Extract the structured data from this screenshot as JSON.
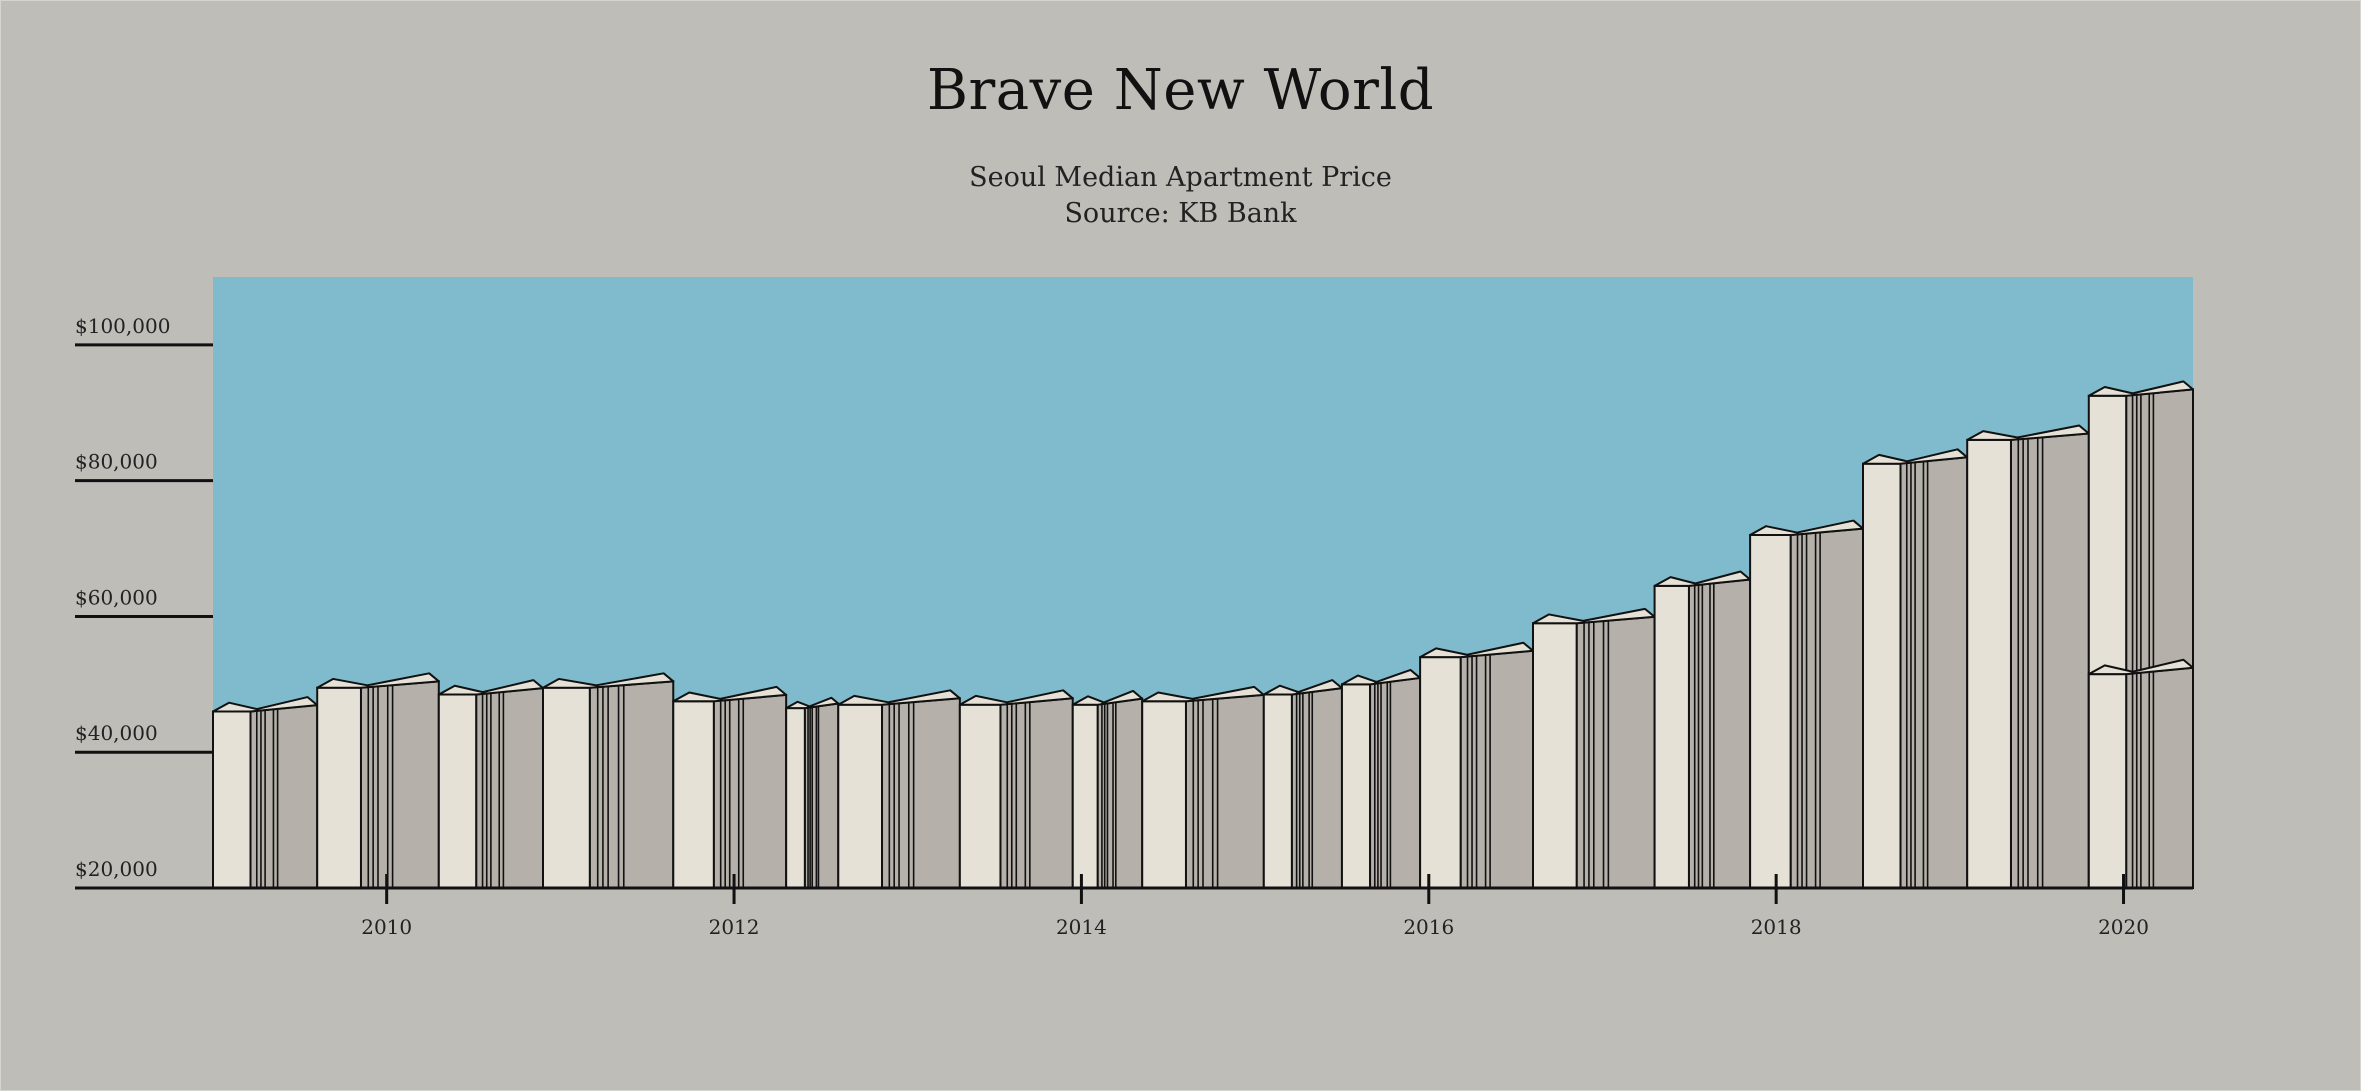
{
  "header": {
    "title": "Brave New World",
    "subtitle_line1": "Seoul Median Apartment Price",
    "subtitle_line2": "Source: KB Bank"
  },
  "colors": {
    "background": "#bfbdb8",
    "plot_background": "#7fbbcc",
    "building_front": "#e5e1d6",
    "building_side": "#b5b1aa",
    "outline": "#111111"
  },
  "chart_data": {
    "type": "bar",
    "style": "3d-buildings",
    "title": "Brave New World",
    "subtitle": "Seoul Median Apartment Price\nSource: KB Bank",
    "xlabel": "",
    "ylabel": "",
    "xlim": [
      2009.0,
      2020.4
    ],
    "ylim": [
      20000,
      110000
    ],
    "x_ticks": [
      2010,
      2012,
      2014,
      2016,
      2018,
      2020
    ],
    "x_tick_labels": [
      "2010",
      "2012",
      "2014",
      "2016",
      "2018",
      "2020"
    ],
    "y_ticks": [
      20000,
      40000,
      60000,
      80000,
      100000
    ],
    "y_tick_labels": [
      "$20,000",
      "$40,000",
      "$60,000",
      "$80,000",
      "$100,000"
    ],
    "grid": false,
    "legend": "none",
    "bars": [
      {
        "start": 2009.0,
        "end": 2009.6,
        "value": 46000
      },
      {
        "start": 2009.6,
        "end": 2010.3,
        "value": 49500
      },
      {
        "start": 2010.3,
        "end": 2010.9,
        "value": 48500
      },
      {
        "start": 2010.9,
        "end": 2011.65,
        "value": 49500
      },
      {
        "start": 2011.65,
        "end": 2012.3,
        "value": 47500
      },
      {
        "start": 2012.3,
        "end": 2012.6,
        "value": 46500
      },
      {
        "start": 2012.6,
        "end": 2013.3,
        "value": 47000
      },
      {
        "start": 2013.3,
        "end": 2013.95,
        "value": 47000
      },
      {
        "start": 2013.95,
        "end": 2014.35,
        "value": 47000
      },
      {
        "start": 2014.35,
        "end": 2015.05,
        "value": 47500
      },
      {
        "start": 2015.05,
        "end": 2015.5,
        "value": 48500
      },
      {
        "start": 2015.5,
        "end": 2015.95,
        "value": 50000
      },
      {
        "start": 2015.95,
        "end": 2016.6,
        "value": 54000
      },
      {
        "start": 2016.6,
        "end": 2017.3,
        "value": 59000
      },
      {
        "start": 2017.3,
        "end": 2017.85,
        "value": 64500
      },
      {
        "start": 2017.85,
        "end": 2018.5,
        "value": 72000
      },
      {
        "start": 2018.5,
        "end": 2019.1,
        "value": 82500
      },
      {
        "start": 2019.1,
        "end": 2019.8,
        "value": 86000
      },
      {
        "start": 2019.8,
        "end": 2020.4,
        "value": 92500
      },
      {
        "start": 2019.8,
        "end": 2020.4,
        "value": 51500
      }
    ]
  }
}
